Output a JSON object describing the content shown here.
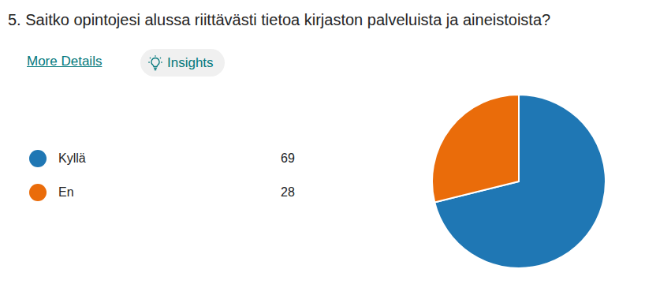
{
  "chart_data": {
    "type": "pie",
    "title": "5. Saitko opintojesi alussa riittävästi tietoa kirjaston palveluista ja aineistoista?",
    "categories": [
      "Kyllä",
      "En"
    ],
    "values": [
      69,
      28
    ],
    "colors": [
      "#1f77b4",
      "#ea6c0a"
    ]
  },
  "links": {
    "more_details": "More Details",
    "insights": "Insights"
  }
}
